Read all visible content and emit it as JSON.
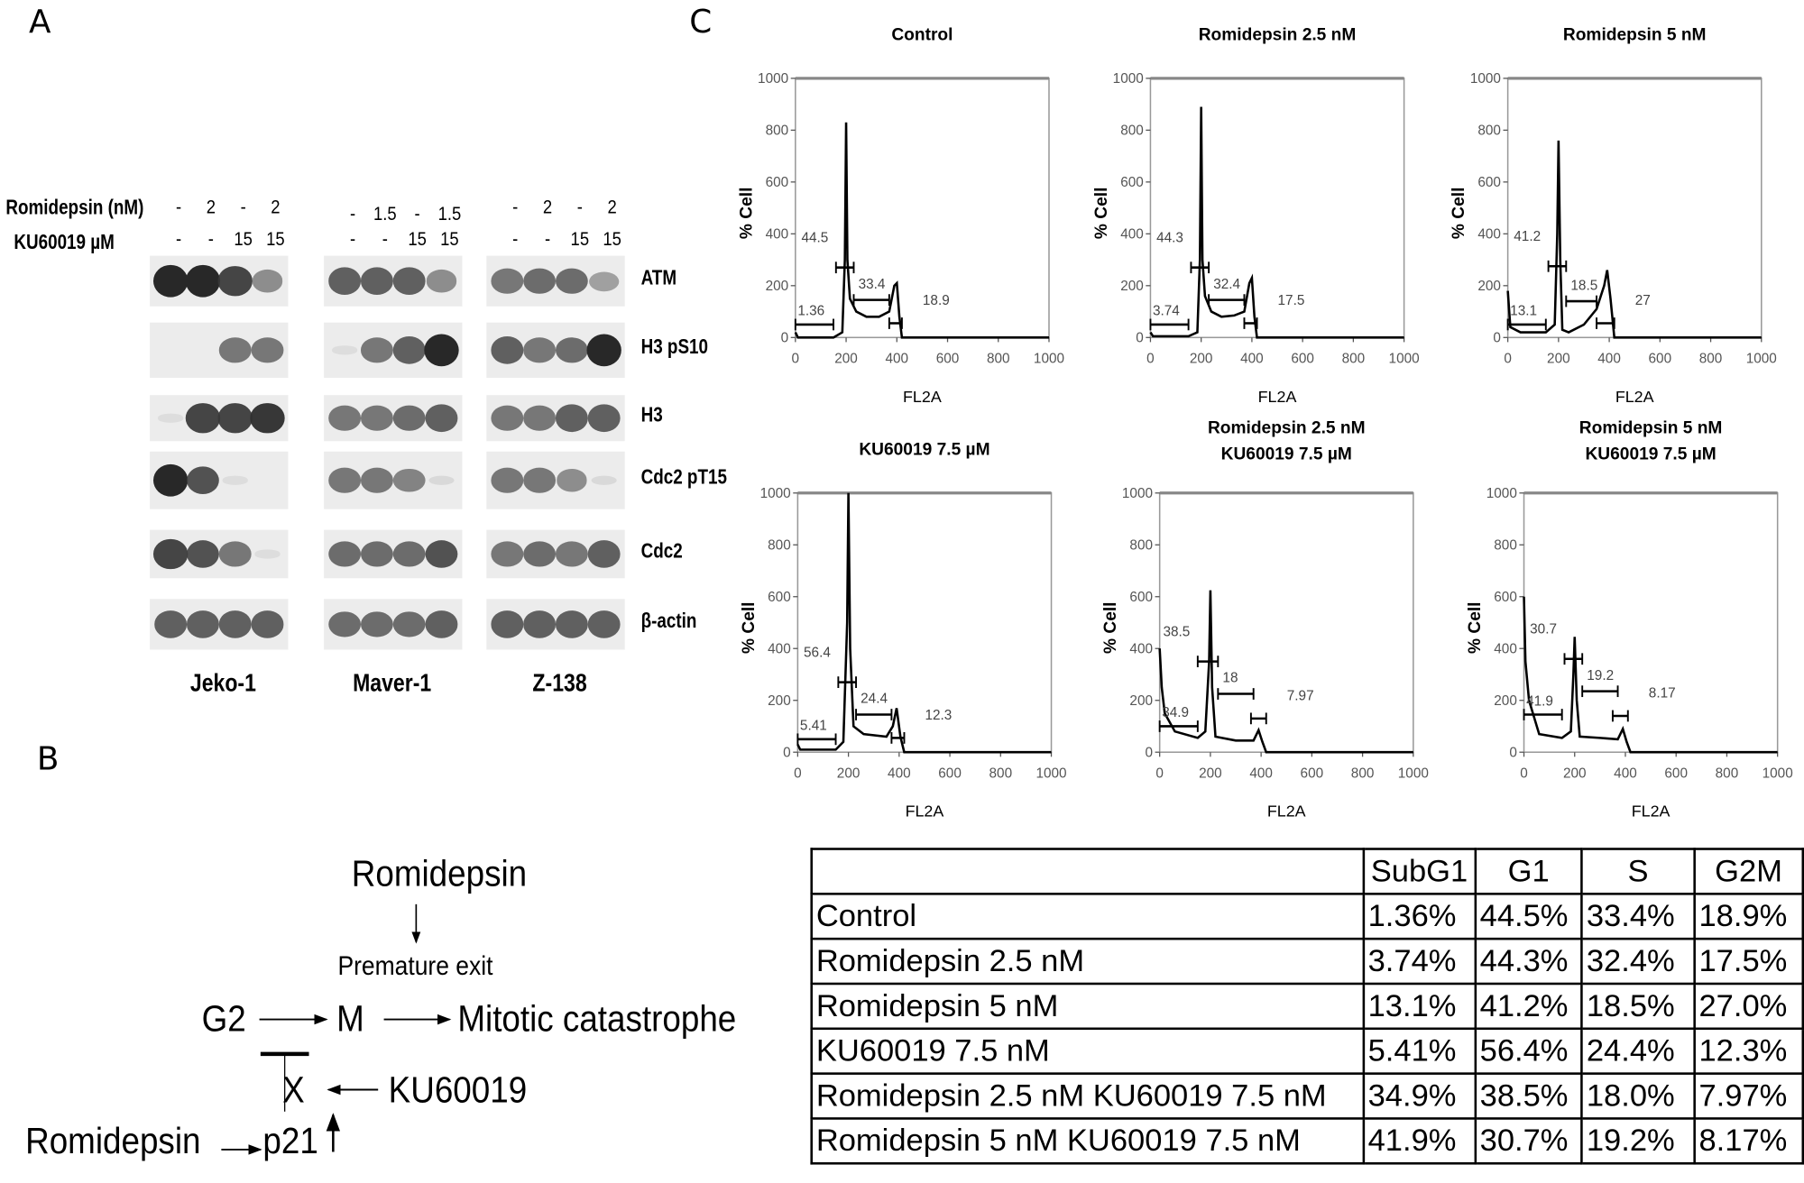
{
  "panels": {
    "a": "A",
    "b": "B",
    "c": "C"
  },
  "blot": {
    "treatment_labels": [
      "Romidepsin (nM)",
      "KU60019 µM"
    ],
    "cell_lines": [
      {
        "name": "Jeko-1",
        "romidepsin": [
          "-",
          "2",
          "-",
          "2"
        ],
        "ku60019": [
          "-",
          "-",
          "15",
          "15"
        ]
      },
      {
        "name": "Maver-1",
        "romidepsin": [
          "-",
          "1.5",
          "-",
          "1.5"
        ],
        "ku60019": [
          "-",
          "-",
          "15",
          "15"
        ]
      },
      {
        "name": "Z-138",
        "romidepsin": [
          "-",
          "2",
          "-",
          "2"
        ],
        "ku60019": [
          "-",
          "-",
          "15",
          "15"
        ]
      }
    ],
    "proteins": [
      {
        "name": "ATM",
        "bands": [
          [
            1.0,
            1.0,
            0.9,
            0.6
          ],
          [
            0.8,
            0.8,
            0.8,
            0.6
          ],
          [
            0.7,
            0.75,
            0.75,
            0.5
          ]
        ]
      },
      {
        "name": "H3 pS10",
        "bands": [
          [
            0,
            0,
            0.7,
            0.7
          ],
          [
            0.05,
            0.7,
            0.8,
            1.0
          ],
          [
            0.8,
            0.7,
            0.75,
            1.0
          ]
        ]
      },
      {
        "name": "H3",
        "bands": [
          [
            0.05,
            0.9,
            0.9,
            0.95
          ],
          [
            0.7,
            0.7,
            0.75,
            0.8
          ],
          [
            0.7,
            0.7,
            0.8,
            0.8
          ]
        ]
      },
      {
        "name": "Cdc2 pT15",
        "bands": [
          [
            1.0,
            0.85,
            0.05,
            0
          ],
          [
            0.7,
            0.7,
            0.65,
            0.1
          ],
          [
            0.7,
            0.7,
            0.6,
            0.1
          ]
        ]
      },
      {
        "name": "Cdc2",
        "bands": [
          [
            0.9,
            0.85,
            0.7,
            0.05
          ],
          [
            0.75,
            0.75,
            0.75,
            0.85
          ],
          [
            0.7,
            0.75,
            0.7,
            0.8
          ]
        ]
      },
      {
        "name": "β-actin",
        "bands": [
          [
            0.8,
            0.8,
            0.8,
            0.8
          ],
          [
            0.75,
            0.75,
            0.75,
            0.8
          ],
          [
            0.8,
            0.8,
            0.8,
            0.8
          ]
        ]
      }
    ]
  },
  "chart_data": [
    {
      "type": "line",
      "title": [
        "Control"
      ],
      "xlabel": "FL2A",
      "ylabel": "% Cell",
      "xlim": [
        0,
        1000
      ],
      "ylim": [
        0,
        1000
      ],
      "xticks": [
        "0",
        "200",
        "400",
        "600",
        "800",
        "1000"
      ],
      "yticks": [
        "0",
        "200",
        "400",
        "600",
        "800",
        "1000"
      ],
      "x": [
        0,
        10,
        150,
        185,
        195,
        200,
        205,
        215,
        240,
        280,
        330,
        370,
        390,
        400,
        410,
        420,
        1000
      ],
      "y": [
        20,
        0,
        0,
        20,
        300,
        830,
        300,
        150,
        100,
        80,
        80,
        100,
        200,
        210,
        80,
        0,
        0
      ],
      "gates": [
        {
          "label": "1.36",
          "range": [
            0,
            150
          ],
          "level": 50
        },
        {
          "label": "44.5",
          "range": [
            160,
            230
          ],
          "level": 270
        },
        {
          "label": "33.4",
          "range": [
            230,
            370
          ],
          "level": 145
        },
        {
          "label": "18.9",
          "range": [
            370,
            420
          ],
          "level": 55
        }
      ]
    },
    {
      "type": "line",
      "title": [
        "Romidepsin 2.5 nM"
      ],
      "xlabel": "FL2A",
      "ylabel": "% Cell",
      "xlim": [
        0,
        1000
      ],
      "ylim": [
        0,
        1000
      ],
      "xticks": [
        "0",
        "200",
        "400",
        "600",
        "800",
        "1000"
      ],
      "yticks": [
        "0",
        "200",
        "400",
        "600",
        "800",
        "1000"
      ],
      "x": [
        0,
        10,
        150,
        185,
        195,
        200,
        205,
        215,
        240,
        280,
        330,
        370,
        390,
        400,
        410,
        420,
        1000
      ],
      "y": [
        20,
        5,
        5,
        20,
        300,
        890,
        300,
        160,
        100,
        80,
        85,
        100,
        210,
        230,
        80,
        0,
        0
      ],
      "gates": [
        {
          "label": "3.74",
          "range": [
            0,
            150
          ],
          "level": 50
        },
        {
          "label": "44.3",
          "range": [
            160,
            230
          ],
          "level": 270
        },
        {
          "label": "32.4",
          "range": [
            230,
            370
          ],
          "level": 145
        },
        {
          "label": "17.5",
          "range": [
            370,
            420
          ],
          "level": 55
        }
      ]
    },
    {
      "type": "line",
      "title": [
        "Romidepsin  5 nM"
      ],
      "xlabel": "FL2A",
      "ylabel": "% Cell",
      "xlim": [
        0,
        1000
      ],
      "ylim": [
        0,
        1000
      ],
      "xticks": [
        "0",
        "200",
        "400",
        "600",
        "800",
        "1000"
      ],
      "yticks": [
        "0",
        "200",
        "400",
        "600",
        "800",
        "1000"
      ],
      "x": [
        0,
        10,
        50,
        150,
        185,
        195,
        200,
        207,
        215,
        240,
        300,
        350,
        380,
        392,
        405,
        420,
        1000
      ],
      "y": [
        180,
        40,
        20,
        20,
        50,
        400,
        760,
        300,
        30,
        20,
        50,
        110,
        200,
        260,
        150,
        0,
        0
      ],
      "gates": [
        {
          "label": "13.1",
          "range": [
            0,
            150
          ],
          "level": 50
        },
        {
          "label": "41.2",
          "range": [
            160,
            230
          ],
          "level": 275
        },
        {
          "label": "18.5",
          "range": [
            230,
            350
          ],
          "level": 140
        },
        {
          "label": "27",
          "range": [
            350,
            420
          ],
          "level": 55
        }
      ]
    },
    {
      "type": "line",
      "title": [
        "KU60019  7.5 µM"
      ],
      "xlabel": "FL2A",
      "ylabel": "% Cell",
      "xlim": [
        0,
        1000
      ],
      "ylim": [
        0,
        1000
      ],
      "xticks": [
        "0",
        "200",
        "400",
        "600",
        "800",
        "1000"
      ],
      "yticks": [
        "0",
        "200",
        "400",
        "600",
        "800",
        "1000"
      ],
      "x": [
        0,
        10,
        150,
        180,
        195,
        200,
        207,
        220,
        260,
        350,
        375,
        390,
        405,
        420,
        1000
      ],
      "y": [
        30,
        10,
        10,
        40,
        500,
        1000,
        400,
        100,
        70,
        60,
        100,
        170,
        60,
        0,
        0
      ],
      "gates": [
        {
          "label": "5.41",
          "range": [
            0,
            150
          ],
          "level": 50
        },
        {
          "label": "56.4",
          "range": [
            160,
            230
          ],
          "level": 270
        },
        {
          "label": "24.4",
          "range": [
            230,
            370
          ],
          "level": 145
        },
        {
          "label": "12.3",
          "range": [
            370,
            420
          ],
          "level": 55
        }
      ]
    },
    {
      "type": "line",
      "title": [
        "Romidepsin 2.5 nM",
        "KU60019  7.5 µM"
      ],
      "xlabel": "FL2A",
      "ylabel": "% Cell",
      "xlim": [
        0,
        1000
      ],
      "ylim": [
        0,
        1000
      ],
      "xticks": [
        "0",
        "200",
        "400",
        "600",
        "800",
        "1000"
      ],
      "yticks": [
        "0",
        "200",
        "400",
        "600",
        "800",
        "1000"
      ],
      "x": [
        0,
        8,
        20,
        60,
        150,
        180,
        195,
        200,
        207,
        220,
        300,
        370,
        390,
        405,
        420,
        1000
      ],
      "y": [
        400,
        250,
        150,
        80,
        55,
        80,
        350,
        625,
        250,
        60,
        45,
        45,
        85,
        40,
        0,
        0
      ],
      "gates": [
        {
          "label": "34.9",
          "range": [
            0,
            150
          ],
          "level": 100
        },
        {
          "label": "38.5",
          "range": [
            150,
            230
          ],
          "level": 350
        },
        {
          "label": "18",
          "range": [
            230,
            370
          ],
          "level": 225
        },
        {
          "label": "7.97",
          "range": [
            360,
            420
          ],
          "level": 130
        }
      ]
    },
    {
      "type": "line",
      "title": [
        "Romidepsin  5 nM",
        "KU60019  7.5 µM"
      ],
      "xlabel": "FL2A",
      "ylabel": "% Cell",
      "xlim": [
        0,
        1000
      ],
      "ylim": [
        0,
        1000
      ],
      "xticks": [
        "0",
        "200",
        "400",
        "600",
        "800",
        "1000"
      ],
      "yticks": [
        "0",
        "200",
        "400",
        "600",
        "800",
        "1000"
      ],
      "x": [
        0,
        6,
        20,
        60,
        150,
        185,
        195,
        200,
        208,
        220,
        300,
        370,
        390,
        405,
        420,
        1000
      ],
      "y": [
        600,
        350,
        200,
        70,
        55,
        80,
        300,
        445,
        200,
        60,
        55,
        50,
        90,
        40,
        0,
        0
      ],
      "gates": [
        {
          "label": "41.9",
          "range": [
            0,
            150
          ],
          "level": 145
        },
        {
          "label": "30.7",
          "range": [
            160,
            230
          ],
          "level": 360
        },
        {
          "label": "19.2",
          "range": [
            230,
            370
          ],
          "level": 235
        },
        {
          "label": "8.17",
          "range": [
            350,
            410
          ],
          "level": 140
        }
      ]
    }
  ],
  "diagram": {
    "romidepsin_top": "Romidepsin",
    "premature_exit": "Premature exit",
    "g2": "G2",
    "m": "M",
    "mitotic": "Mitotic catastrophe",
    "x": "X",
    "ku": "KU60019",
    "romidepsin_bottom": "Romidepsin",
    "p21": "p21"
  },
  "table": {
    "headers": [
      "",
      "SubG1",
      "G1",
      "S",
      "G2M"
    ],
    "rows": [
      [
        "Control",
        "1.36%",
        "44.5%",
        "33.4%",
        "18.9%"
      ],
      [
        "Romidepsin 2.5 nM",
        "3.74%",
        "44.3%",
        "32.4%",
        "17.5%"
      ],
      [
        "Romidepsin 5 nM",
        "13.1%",
        "41.2%",
        "18.5%",
        "27.0%"
      ],
      [
        "KU60019 7.5 nM",
        "5.41%",
        "56.4%",
        "24.4%",
        "12.3%"
      ],
      [
        "Romidepsin 2.5 nM KU60019 7.5 nM",
        "34.9%",
        "38.5%",
        "18.0%",
        "7.97%"
      ],
      [
        "Romidepsin 5 nM KU60019 7.5 nM",
        "41.9%",
        "30.7%",
        "19.2%",
        "8.17%"
      ]
    ]
  }
}
